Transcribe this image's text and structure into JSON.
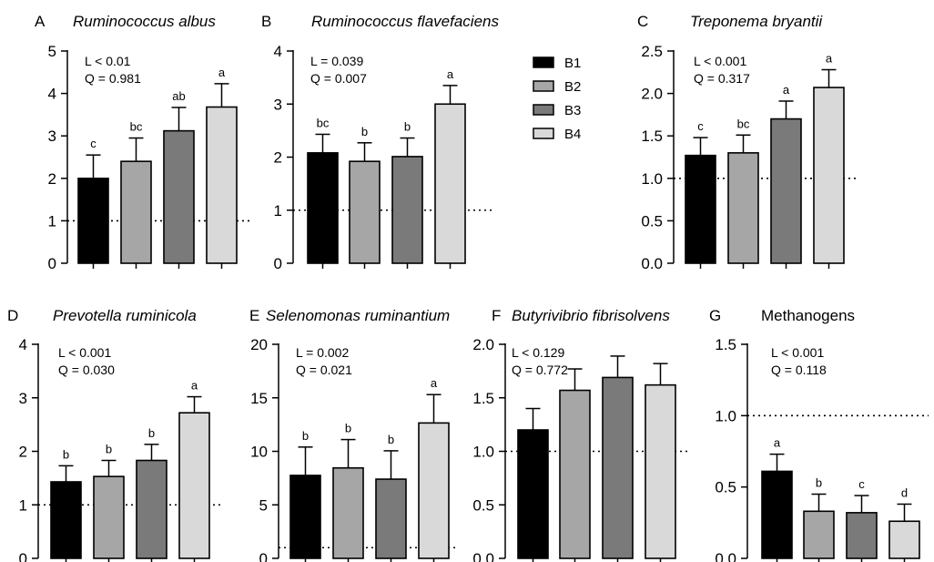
{
  "legend": {
    "items": [
      {
        "label": "B1",
        "color": "#000000"
      },
      {
        "label": "B2",
        "color": "#a6a6a6"
      },
      {
        "label": "B3",
        "color": "#7a7a7a"
      },
      {
        "label": "B4",
        "color": "#d9d9d9"
      }
    ]
  },
  "reference_line": 1,
  "chart_data": [
    {
      "type": "bar",
      "letter": "A",
      "title": "Ruminococcus albus",
      "italic": true,
      "stats": [
        "L < 0.01",
        "Q = 0.981"
      ],
      "categories": [
        "B1",
        "B2",
        "B3",
        "B4"
      ],
      "values": [
        2.0,
        2.4,
        3.12,
        3.68
      ],
      "errors": [
        0.55,
        0.55,
        0.55,
        0.55
      ],
      "letters": [
        "c",
        "bc",
        "ab",
        "a"
      ],
      "ylim": [
        0,
        5
      ],
      "ticks": [
        0,
        1,
        2,
        3,
        4,
        5
      ],
      "tick_labels": [
        "0",
        "1",
        "2",
        "3",
        "4",
        "5"
      ]
    },
    {
      "type": "bar",
      "letter": "B",
      "title": "Ruminococcus flavefaciens",
      "italic": true,
      "stats": [
        "L = 0.039",
        "Q = 0.007"
      ],
      "categories": [
        "B1",
        "B2",
        "B3",
        "B4"
      ],
      "values": [
        2.08,
        1.92,
        2.01,
        3.0
      ],
      "errors": [
        0.35,
        0.35,
        0.35,
        0.35
      ],
      "letters": [
        "bc",
        "b",
        "b",
        "a"
      ],
      "ylim": [
        0,
        4
      ],
      "ticks": [
        0,
        1,
        2,
        3,
        4
      ],
      "tick_labels": [
        "0",
        "1",
        "2",
        "3",
        "4"
      ]
    },
    {
      "type": "bar",
      "letter": "C",
      "title": "Treponema bryantii",
      "italic": true,
      "stats": [
        "L < 0.001",
        "Q = 0.317"
      ],
      "categories": [
        "B1",
        "B2",
        "B3",
        "B4"
      ],
      "values": [
        1.27,
        1.3,
        1.7,
        2.07
      ],
      "errors": [
        0.21,
        0.21,
        0.21,
        0.21
      ],
      "letters": [
        "c",
        "bc",
        "a",
        "a"
      ],
      "ylim": [
        0,
        2.5
      ],
      "ticks": [
        0,
        0.5,
        1,
        1.5,
        2,
        2.5
      ],
      "tick_labels": [
        "0.0",
        "0.5",
        "1.0",
        "1.5",
        "2.0",
        "2.5"
      ]
    },
    {
      "type": "bar",
      "letter": "D",
      "title": "Prevotella ruminicola",
      "italic": true,
      "stats": [
        "L < 0.001",
        "Q = 0.030"
      ],
      "categories": [
        "B1",
        "B2",
        "B3",
        "B4"
      ],
      "values": [
        1.43,
        1.53,
        1.83,
        2.72
      ],
      "errors": [
        0.3,
        0.3,
        0.3,
        0.3
      ],
      "letters": [
        "b",
        "b",
        "b",
        "a"
      ],
      "ylim": [
        0,
        4
      ],
      "ticks": [
        0,
        1,
        2,
        3,
        4
      ],
      "tick_labels": [
        "0",
        "1",
        "2",
        "3",
        "4"
      ]
    },
    {
      "type": "bar",
      "letter": "E",
      "title": "Selenomonas ruminantium",
      "italic": true,
      "stats": [
        "L = 0.002",
        "Q = 0.021"
      ],
      "categories": [
        "B1",
        "B2",
        "B3",
        "B4"
      ],
      "values": [
        7.75,
        8.45,
        7.4,
        12.65
      ],
      "errors": [
        2.65,
        2.65,
        2.65,
        2.65
      ],
      "letters": [
        "b",
        "b",
        "b",
        "a"
      ],
      "ylim": [
        0,
        20
      ],
      "ticks": [
        0,
        5,
        10,
        15,
        20
      ],
      "tick_labels": [
        "0",
        "5",
        "10",
        "15",
        "20"
      ]
    },
    {
      "type": "bar",
      "letter": "F",
      "title": "Butyrivibrio fibrisolvens",
      "italic": true,
      "stats": [
        "L < 0.129",
        "Q = 0.772"
      ],
      "categories": [
        "B1",
        "B2",
        "B3",
        "B4"
      ],
      "values": [
        1.2,
        1.57,
        1.69,
        1.62
      ],
      "errors": [
        0.2,
        0.2,
        0.2,
        0.2
      ],
      "letters": [
        "",
        "",
        "",
        ""
      ],
      "ylim": [
        0,
        2
      ],
      "ticks": [
        0,
        0.5,
        1,
        1.5,
        2
      ],
      "tick_labels": [
        "0.0",
        "0.5",
        "1.0",
        "1.5",
        "2.0"
      ]
    },
    {
      "type": "bar",
      "letter": "G",
      "title": "Methanogens",
      "italic": false,
      "stats": [
        "L < 0.001",
        "Q = 0.118"
      ],
      "categories": [
        "B1",
        "B2",
        "B3",
        "B4"
      ],
      "values": [
        0.61,
        0.33,
        0.32,
        0.26
      ],
      "errors": [
        0.12,
        0.12,
        0.12,
        0.12
      ],
      "letters": [
        "a",
        "b",
        "c",
        "d"
      ],
      "ylim": [
        0,
        1.5
      ],
      "ticks": [
        0,
        0.5,
        1,
        1.5
      ],
      "tick_labels": [
        "0.0",
        "0.5",
        "1.0",
        "1.5"
      ]
    }
  ]
}
